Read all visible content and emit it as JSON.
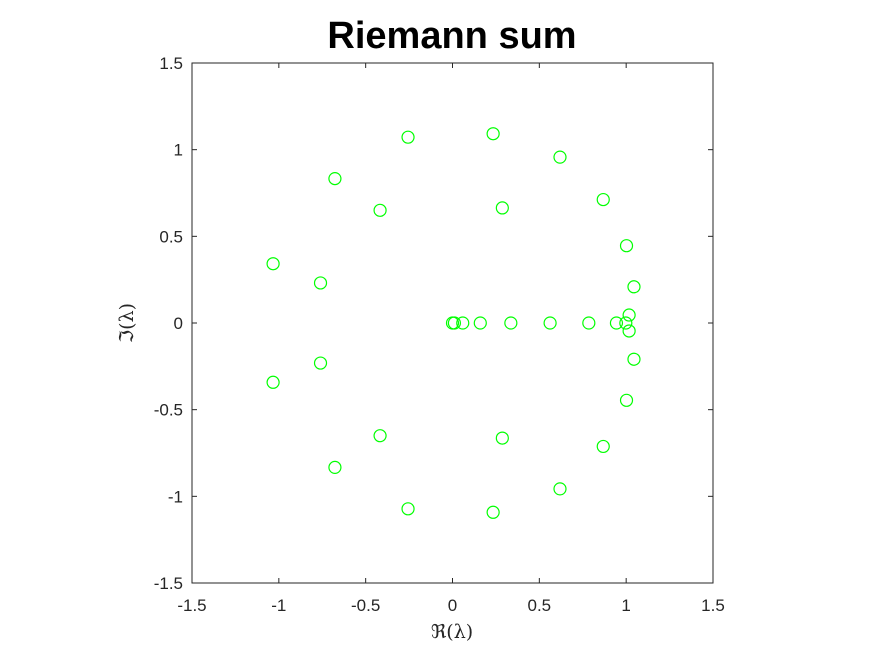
{
  "chart_data": {
    "type": "scatter",
    "title": "Riemann sum",
    "xlabel": "ℜ(λ)",
    "ylabel": "ℑ(λ)",
    "xlim": [
      -1.5,
      1.5
    ],
    "ylim": [
      -1.5,
      1.5
    ],
    "xticks": [
      -1.5,
      -1,
      -0.5,
      0,
      0.5,
      1,
      1.5
    ],
    "yticks": [
      -1.5,
      -1,
      -0.5,
      0,
      0.5,
      1,
      1.5
    ],
    "xtick_labels": [
      "-1.5",
      "-1",
      "-0.5",
      "0",
      "0.5",
      "1",
      "1.5"
    ],
    "ytick_labels": [
      "-1.5",
      "-1",
      "-0.5",
      "0",
      "0.5",
      "1",
      "1.5"
    ],
    "grid": false,
    "marker": "circle",
    "marker_color": "#00ff00",
    "points": [
      [
        0.234,
        1.092
      ],
      [
        -0.256,
        1.072
      ],
      [
        0.619,
        0.957
      ],
      [
        -0.677,
        0.833
      ],
      [
        0.868,
        0.712
      ],
      [
        0.287,
        0.664
      ],
      [
        -0.417,
        0.65
      ],
      [
        1.002,
        0.446
      ],
      [
        -1.033,
        0.342
      ],
      [
        -0.76,
        0.231
      ],
      [
        1.045,
        0.209
      ],
      [
        1.017,
        0.046
      ],
      [
        0.0,
        0.0
      ],
      [
        0.011,
        0.0
      ],
      [
        0.059,
        0.0
      ],
      [
        0.16,
        0.0
      ],
      [
        0.336,
        0.0
      ],
      [
        0.562,
        0.0
      ],
      [
        0.785,
        0.0
      ],
      [
        0.944,
        0.0
      ],
      [
        0.998,
        0.0
      ],
      [
        1.017,
        -0.046
      ],
      [
        1.045,
        -0.209
      ],
      [
        -1.033,
        -0.342
      ],
      [
        -0.76,
        -0.231
      ],
      [
        1.002,
        -0.446
      ],
      [
        -0.417,
        -0.65
      ],
      [
        0.287,
        -0.664
      ],
      [
        0.868,
        -0.712
      ],
      [
        -0.677,
        -0.833
      ],
      [
        0.619,
        -0.957
      ],
      [
        -0.256,
        -1.072
      ],
      [
        0.234,
        -1.092
      ]
    ]
  }
}
